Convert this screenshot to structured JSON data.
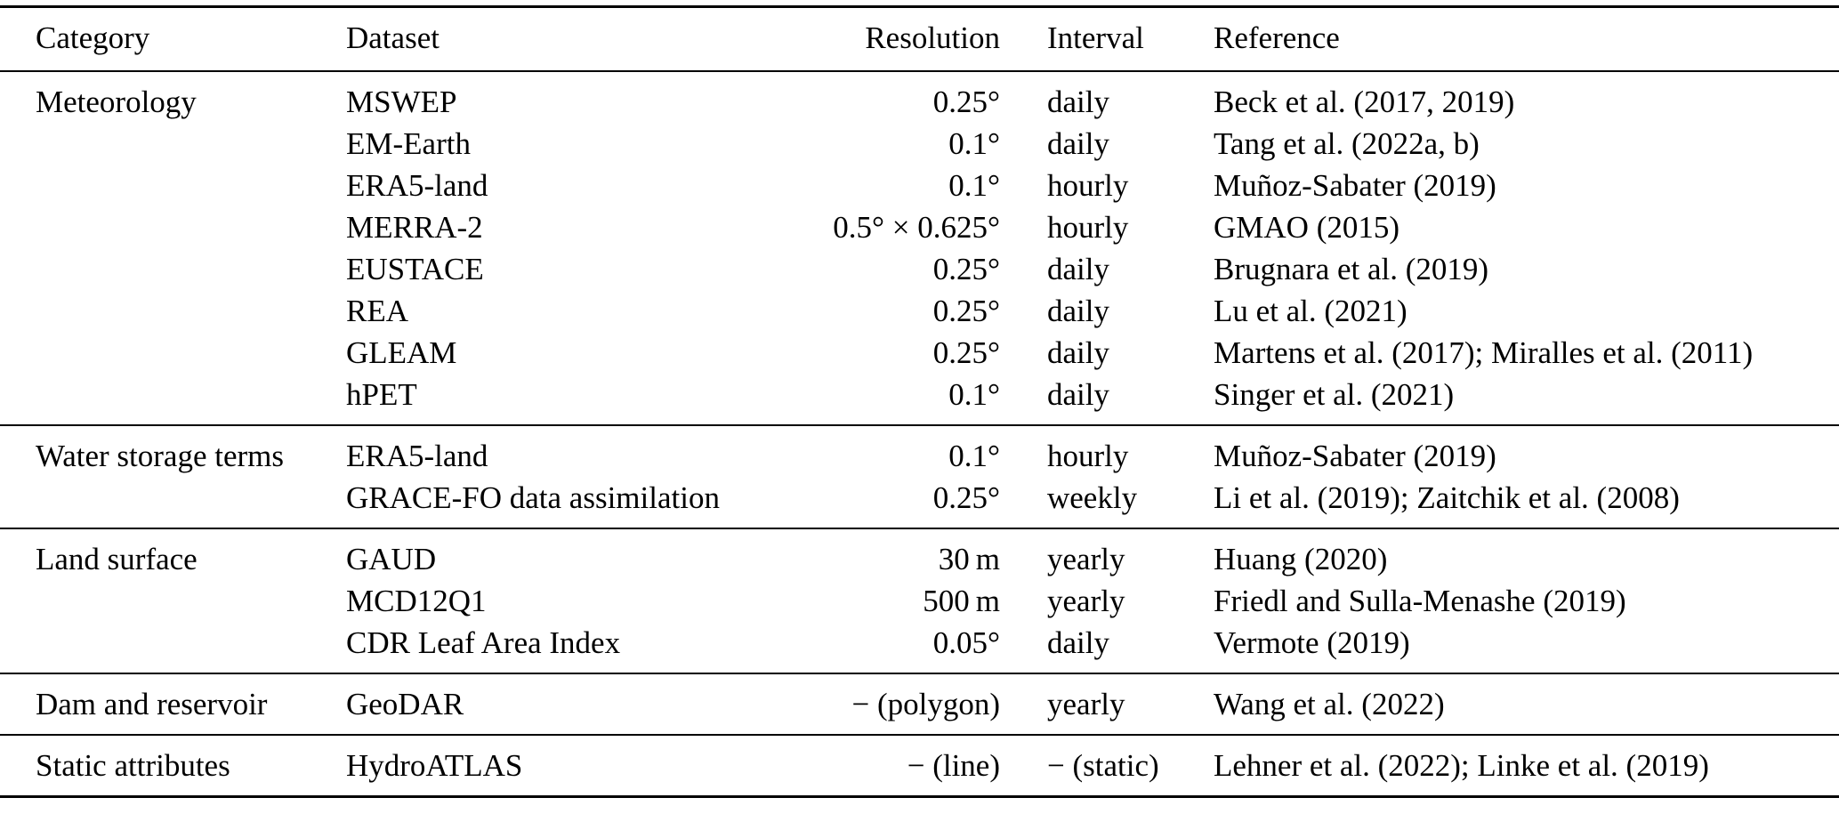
{
  "table": {
    "headers": [
      "Category",
      "Dataset",
      "Resolution",
      "Interval",
      "Reference"
    ],
    "groups": [
      {
        "category": "Meteorology",
        "rows": [
          {
            "dataset": "MSWEP",
            "resolution": "0.25°",
            "interval": "daily",
            "reference": "Beck et al. (2017, 2019)"
          },
          {
            "dataset": "EM-Earth",
            "resolution": "0.1°",
            "interval": "daily",
            "reference": "Tang et al. (2022a, b)"
          },
          {
            "dataset": "ERA5-land",
            "resolution": "0.1°",
            "interval": "hourly",
            "reference": "Muñoz-Sabater (2019)"
          },
          {
            "dataset": "MERRA-2",
            "resolution": "0.5° × 0.625°",
            "interval": "hourly",
            "reference": "GMAO (2015)"
          },
          {
            "dataset": "EUSTACE",
            "resolution": "0.25°",
            "interval": "daily",
            "reference": "Brugnara et al. (2019)"
          },
          {
            "dataset": "REA",
            "resolution": "0.25°",
            "interval": "daily",
            "reference": "Lu et al. (2021)"
          },
          {
            "dataset": "GLEAM",
            "resolution": "0.25°",
            "interval": "daily",
            "reference": "Martens et al. (2017); Miralles et al. (2011)"
          },
          {
            "dataset": "hPET",
            "resolution": "0.1°",
            "interval": "daily",
            "reference": "Singer et al. (2021)"
          }
        ]
      },
      {
        "category": "Water storage terms",
        "rows": [
          {
            "dataset": "ERA5-land",
            "resolution": "0.1°",
            "interval": "hourly",
            "reference": "Muñoz-Sabater (2019)"
          },
          {
            "dataset": "GRACE-FO data assimilation",
            "resolution": "0.25°",
            "interval": "weekly",
            "reference": "Li et al. (2019); Zaitchik et al. (2008)"
          }
        ]
      },
      {
        "category": "Land surface",
        "rows": [
          {
            "dataset": "GAUD",
            "resolution": "30 m",
            "interval": "yearly",
            "reference": "Huang (2020)"
          },
          {
            "dataset": "MCD12Q1",
            "resolution": "500 m",
            "interval": "yearly",
            "reference": "Friedl and Sulla-Menashe (2019)"
          },
          {
            "dataset": "CDR Leaf Area Index",
            "resolution": "0.05°",
            "interval": "daily",
            "reference": "Vermote (2019)"
          }
        ]
      },
      {
        "category": "Dam and reservoir",
        "rows": [
          {
            "dataset": "GeoDAR",
            "resolution": "− (polygon)",
            "interval": "yearly",
            "reference": "Wang et al. (2022)"
          }
        ]
      },
      {
        "category": "Static attributes",
        "rows": [
          {
            "dataset": "HydroATLAS",
            "resolution": "− (line)",
            "interval": "− (static)",
            "reference": "Lehner et al. (2022); Linke et al. (2019)"
          }
        ]
      }
    ]
  }
}
